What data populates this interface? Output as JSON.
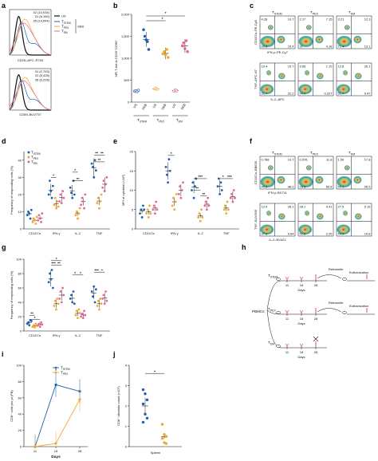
{
  "colors": {
    "us": "#2a5caa",
    "stem": "#1f5fb0",
    "pex": "#f0a830",
    "em": "#e8649a",
    "ussolid": "#111111"
  },
  "panels": {
    "labels": [
      "a",
      "b",
      "c",
      "d",
      "e",
      "f",
      "g",
      "h",
      "i",
      "j"
    ],
    "a": {
      "xlabel1": "CD25–APC–R700",
      "xlabel2": "CD69–BUV737",
      "mfi1": [
        "42 (10,034)",
        "31 (8,150)",
        "35 (14,544)"
      ],
      "mfi2": [
        "41 (2,763)",
        "31 (5,426)",
        "35 (6,226)"
      ],
      "legend": {
        "us": "US",
        "stem": "T",
        "stem_sub": "STEM",
        "pex": "T",
        "pex_sub": "PEX",
        "em": "T",
        "em_sub": "EM",
        "seb": "SEB"
      }
    },
    "b": {
      "ylabel": "MFI T-bet in CD25⁺CD69⁺",
      "yticks": [
        "0",
        "500",
        "1,000",
        "1,500",
        "2,000"
      ],
      "xticks": [
        "US",
        "SEB",
        "US",
        "SEB",
        "US",
        "SEB"
      ],
      "groups": [
        "T",
        "T",
        "T"
      ],
      "group_subs": [
        "STEM",
        "PEX",
        "EM"
      ],
      "sig": [
        "*",
        "*"
      ]
    },
    "c": {
      "cols": [
        "T",
        "T",
        "T"
      ],
      "col_subs": [
        "STEM",
        "PEX",
        "EM"
      ],
      "row1_ylabel": "CD107a–PE-Cy5",
      "row1_xlabel": "IFN-γ–PE-Cy7",
      "row2_ylabel": "TNF–APC-H7",
      "row2_xlabel": "IL-2–APC",
      "row1": [
        [
          "4.28",
          "10.7",
          "69.6",
          "15.4"
        ],
        [
          "2.17",
          "7.15",
          "91",
          "4.18"
        ],
        [
          "3.21",
          "12.3",
          "71.4",
          "13.1"
        ]
      ],
      "row2": [
        [
          "10.4",
          "15.7",
          "51.7",
          "22.2"
        ],
        [
          "3.66",
          "1.15",
          "94.9",
          "0.227"
        ],
        [
          "12.8",
          "26.1",
          "51.7",
          "9.47"
        ]
      ]
    },
    "d": {
      "ylabel": "Frequency of responding cells (%)",
      "yticks": [
        "0",
        "10",
        "20",
        "30",
        "40"
      ],
      "categories": [
        "CD107a",
        "IFN-γ",
        "IL-2",
        "TNF"
      ],
      "legend": [
        "T",
        "T",
        "T"
      ],
      "legend_subs": [
        "STEM",
        "PEX",
        "EM"
      ],
      "sig": [
        "**",
        "*",
        "*",
        "**",
        "**",
        "**"
      ]
    },
    "e": {
      "ylabel": "MFI of cytokine (×10³)",
      "yticks": [
        "0",
        "5",
        "10",
        "15",
        "20"
      ],
      "categories": [
        "CD107a",
        "IFN-γ",
        "IL-2",
        "TNF"
      ],
      "sig": [
        "*",
        "**",
        "***",
        "**",
        "*",
        "***"
      ]
    },
    "f": {
      "cols": [
        "T",
        "T",
        "T"
      ],
      "col_subs": [
        "STEM",
        "PEX",
        "EM"
      ],
      "row1_ylabel": "CD107a–BB630",
      "row1_xlabel": "IFN-γ–BV711",
      "row2_ylabel": "TNF–BUV395",
      "row2_xlabel": "IL-2–BV421",
      "row1": [
        [
          "0.788",
          "10.7",
          "40.5",
          "48.3"
        ],
        [
          "0.576",
          "11.8",
          "28.5",
          "59.8"
        ],
        [
          "1.59",
          "17.8",
          "54.1",
          "26.5"
        ]
      ],
      "row2": [
        [
          "12.9",
          "28.1",
          "37.3",
          "9.64"
        ],
        [
          "28.1",
          "9.41",
          "52.8",
          "2.25"
        ],
        [
          "27.5",
          "9.15",
          "44.4",
          "10.8"
        ]
      ]
    },
    "g": {
      "ylabel": "Frequency of responding cells (%)",
      "yticks": [
        "0",
        "20",
        "40",
        "60",
        "80",
        "100"
      ],
      "categories": [
        "CD107a",
        "IFN-γ",
        "IL-2",
        "TNF"
      ],
      "sig": [
        "**",
        "*",
        "***",
        "**",
        "*",
        "*",
        "*",
        "***",
        "*"
      ]
    },
    "h": {
      "rows": [
        {
          "label": "T",
          "sub": "STEM",
          "retransfer": "Retransfer",
          "end": "Euthanization"
        },
        {
          "label": "T",
          "sub": "PEX",
          "retransfer": "Retransfer",
          "end": "Euthanization"
        },
        {
          "label": "T",
          "sub": "EM",
          "retransfer": "",
          "end": ""
        }
      ],
      "pbmcs": "PBMCs",
      "days_label": "Days",
      "ticks": [
        "11",
        "18",
        "28"
      ]
    },
    "i": {
      "ylabel": "CD8⁺ cells per μl (PB)",
      "yticks": [
        "0",
        "20",
        "40",
        "60",
        "80",
        "100"
      ],
      "xlabel": "Days",
      "xticks": [
        "11",
        "18",
        "28"
      ],
      "legend": [
        "T",
        "T"
      ],
      "legend_subs": [
        "STEM",
        "PEX"
      ],
      "sig": "*"
    },
    "j": {
      "ylabel": "CD8⁺ absolute count (×10⁵)",
      "yticks": [
        "0",
        "1",
        "2",
        "3",
        "4"
      ],
      "xlabel": "Spleen",
      "sig": "*"
    }
  },
  "chart_data": [
    {
      "type": "scatter",
      "panel": "b",
      "ylabel": "MFI T-bet in CD25⁺CD69⁺",
      "ylim": [
        0,
        2000
      ],
      "categories": [
        "T STEM US",
        "T STEM SEB",
        "T PEX US",
        "T PEX SEB",
        "T EM US",
        "T EM SEB"
      ],
      "series": [
        {
          "values": [
            250,
            260,
            240,
            270
          ]
        },
        {
          "values": [
            1650,
            1500,
            1420,
            1380,
            1200
          ]
        },
        {
          "values": [
            300,
            320,
            290
          ]
        },
        {
          "values": [
            1100,
            1150,
            1080,
            1200,
            1020
          ]
        },
        {
          "values": [
            250,
            280,
            260
          ]
        },
        {
          "values": [
            1280,
            1350,
            1220,
            1400,
            1150
          ]
        }
      ]
    },
    {
      "type": "bar",
      "panel": "d",
      "ylabel": "Frequency of responding cells (%)",
      "ylim": [
        0,
        45
      ],
      "categories": [
        "CD107a",
        "IFN-γ",
        "IL-2",
        "TNF"
      ],
      "series": [
        {
          "name": "T STEM",
          "values": [
            [
              8,
              10,
              9,
              6,
              11
            ],
            [
              20,
              28,
              22,
              18,
              25
            ],
            [
              24,
              21,
              18,
              28,
              20
            ],
            [
              38,
              36,
              30,
              40,
              34
            ]
          ]
        },
        {
          "name": "T PEX",
          "values": [
            [
              4,
              6,
              5,
              3,
              7
            ],
            [
              14,
              18,
              12,
              16,
              13
            ],
            [
              8,
              10,
              6,
              9,
              12
            ],
            [
              15,
              18,
              12,
              16,
              20
            ]
          ]
        },
        {
          "name": "T EM",
          "values": [
            [
              5,
              8,
              6,
              4,
              9
            ],
            [
              16,
              20,
              15,
              22,
              18
            ],
            [
              14,
              18,
              16,
              12,
              20
            ],
            [
              24,
              28,
              22,
              26,
              30
            ]
          ]
        }
      ]
    },
    {
      "type": "bar",
      "panel": "e",
      "ylabel": "MFI of cytokine (×10³)",
      "ylim": [
        0,
        20
      ],
      "categories": [
        "CD107a",
        "IFN-γ",
        "IL-2",
        "TNF"
      ],
      "series": [
        {
          "name": "T STEM",
          "values": [
            [
              4,
              5,
              3,
              6,
              5
            ],
            [
              16,
              14,
              12,
              18,
              15
            ],
            [
              10,
              12,
              8,
              11,
              13
            ],
            [
              11,
              13,
              9,
              12,
              10
            ]
          ]
        },
        {
          "name": "T PEX",
          "values": [
            [
              4,
              5,
              3,
              6,
              4
            ],
            [
              6,
              8,
              5,
              7,
              9
            ],
            [
              3,
              4,
              2,
              5,
              3
            ],
            [
              5,
              6,
              4,
              7,
              5
            ]
          ]
        },
        {
          "name": "T EM",
          "values": [
            [
              5,
              6,
              4,
              7,
              5
            ],
            [
              9,
              11,
              8,
              10,
              12
            ],
            [
              6,
              7,
              5,
              8,
              6
            ],
            [
              8,
              9,
              7,
              10,
              8
            ]
          ]
        }
      ]
    },
    {
      "type": "bar",
      "panel": "g",
      "ylabel": "Frequency of responding cells (%)",
      "ylim": [
        0,
        100
      ],
      "categories": [
        "CD107a",
        "IFN-γ",
        "IL-2",
        "TNF"
      ],
      "series": [
        {
          "name": "T STEM",
          "values": [
            [
              10,
              12,
              8,
              15,
              14
            ],
            [
              68,
              80,
              72,
              85,
              60
            ],
            [
              45,
              50,
              40,
              55,
              38
            ],
            [
              55,
              48,
              62,
              40,
              58
            ]
          ]
        },
        {
          "name": "T PEX",
          "values": [
            [
              6,
              8,
              5,
              10,
              7
            ],
            [
              35,
              42,
              30,
              45,
              38
            ],
            [
              22,
              28,
              18,
              30,
              25
            ],
            [
              35,
              42,
              30,
              45,
              38
            ]
          ]
        },
        {
          "name": "T EM",
          "values": [
            [
              8,
              10,
              6,
              12,
              9
            ],
            [
              45,
              55,
              40,
              60,
              50
            ],
            [
              20,
              24,
              18,
              28,
              22
            ],
            [
              45,
              50,
              38,
              55,
              42
            ]
          ]
        }
      ]
    },
    {
      "type": "line",
      "panel": "i",
      "ylabel": "CD8⁺ cells per μl (PB)",
      "xlabel": "Days",
      "ylim": [
        0,
        100
      ],
      "x": [
        "11",
        "18",
        "28"
      ],
      "series": [
        {
          "name": "T STEM",
          "values": [
            0,
            76,
            68
          ]
        },
        {
          "name": "T PEX",
          "values": [
            0,
            4,
            58
          ]
        }
      ]
    },
    {
      "type": "scatter",
      "panel": "j",
      "ylabel": "CD8⁺ absolute count (×10⁵)",
      "xlabel": "Spleen",
      "ylim": [
        0,
        4
      ],
      "series": [
        {
          "name": "T STEM",
          "values": [
            2.8,
            2.6,
            2.3,
            2.1,
            1.6,
            1.4,
            1.2
          ]
        },
        {
          "name": "T PEX",
          "values": [
            1.1,
            0.6,
            0.5,
            0.4,
            0.2,
            0.15
          ]
        }
      ]
    }
  ]
}
